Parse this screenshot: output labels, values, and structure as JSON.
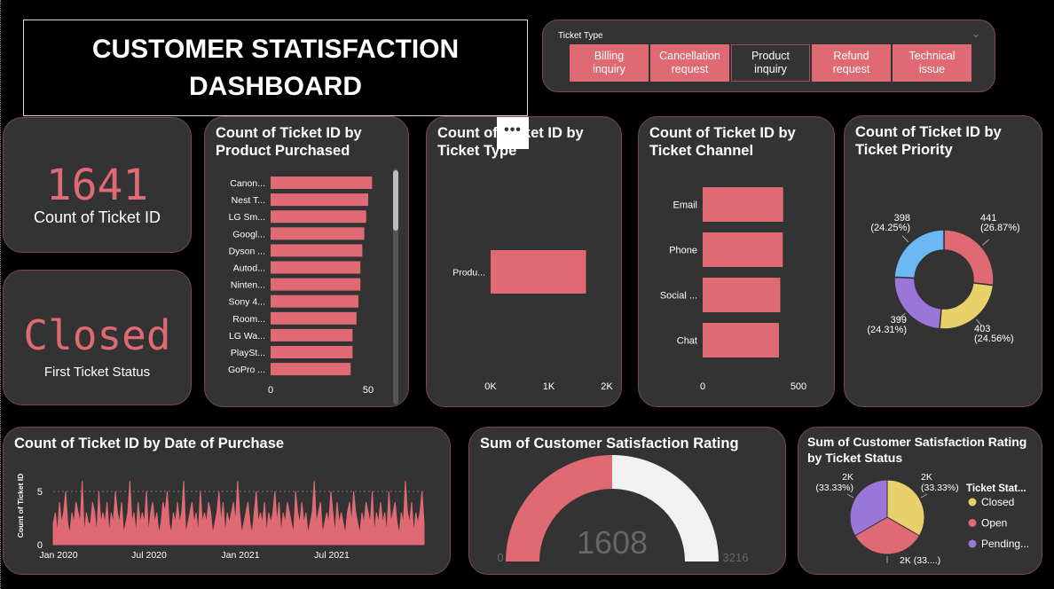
{
  "title": "CUSTOMER STATISFACTION DASHBOARD",
  "colors": {
    "accent": "#df6a73",
    "card": "#333333",
    "blue": "#6ab9f5",
    "yellow": "#e8d06a",
    "purple": "#9a76d8",
    "gauge_rest": "#f1f1f1"
  },
  "slicer": {
    "title": "Ticket Type",
    "selected": "Product inquiry",
    "options": [
      {
        "line1": "Billing",
        "line2": "inquiry"
      },
      {
        "line1": "Cancellation",
        "line2": "request"
      },
      {
        "line1": "Product",
        "line2": "inquiry"
      },
      {
        "line1": "Refund",
        "line2": "request"
      },
      {
        "line1": "Technical",
        "line2": "issue"
      }
    ]
  },
  "kpi_count": {
    "value": "1641",
    "label": "Count of Ticket ID"
  },
  "kpi_status": {
    "value": "Closed",
    "label": "First Ticket Status"
  },
  "more_options_icon": "ellipsis-icon",
  "chart_data": [
    {
      "id": "by_product",
      "type": "bar",
      "orientation": "horizontal",
      "title": "Count of Ticket ID by Product Purchased",
      "categories": [
        "Canon...",
        "Nest T...",
        "LG Sm...",
        "Googl...",
        "Dyson ...",
        "Autod...",
        "Ninten...",
        "Sony 4...",
        "Room...",
        "LG Wa...",
        "PlaySt...",
        "GoPro ..."
      ],
      "values": [
        52,
        50,
        49,
        48,
        47,
        46,
        46,
        45,
        44,
        42,
        42,
        41
      ],
      "xlim": [
        0,
        60
      ],
      "xticks": [
        "0",
        "50"
      ],
      "tick_values": [
        0,
        50
      ]
    },
    {
      "id": "by_type",
      "type": "bar",
      "orientation": "horizontal",
      "title": "Count of Ticket ID by Ticket Type",
      "categories": [
        "Produ..."
      ],
      "values": [
        1641
      ],
      "xlim": [
        0,
        2000
      ],
      "xticks": [
        "0K",
        "1K",
        "2K"
      ],
      "tick_values": [
        0,
        1000,
        2000
      ]
    },
    {
      "id": "by_channel",
      "type": "bar",
      "orientation": "horizontal",
      "title": "Count of Ticket ID by Ticket Channel",
      "categories": [
        "Email",
        "Phone",
        "Social ...",
        "Chat"
      ],
      "values": [
        420,
        418,
        405,
        398
      ],
      "xlim": [
        0,
        500
      ],
      "xticks": [
        "0",
        "500"
      ],
      "tick_values": [
        0,
        500
      ]
    },
    {
      "id": "by_priority",
      "type": "pie",
      "donut": true,
      "title": "Count of Ticket ID by Ticket Priority",
      "values": [
        441,
        403,
        399,
        398
      ],
      "labels": [
        [
          "441",
          "(26.87%)"
        ],
        [
          "403",
          "(24.56%)"
        ],
        [
          "399",
          "(24.31%)"
        ],
        [
          "398",
          "(24.25%)"
        ]
      ],
      "colors": [
        "#df6a73",
        "#e8d06a",
        "#9a76d8",
        "#6ab9f5"
      ]
    },
    {
      "id": "by_date",
      "type": "area",
      "title": "Count of Ticket ID by Date of Purchase",
      "ylabel": "Count of Ticket ID",
      "yticks": [
        "0",
        "5"
      ],
      "ylim": [
        0,
        7
      ],
      "xticks": [
        "Jan 2020",
        "Jul 2020",
        "Jan 2021",
        "Jul 2021"
      ],
      "values": [
        2,
        3,
        1,
        4,
        2,
        3,
        5,
        2,
        1,
        3,
        2,
        4,
        3,
        2,
        6,
        1,
        3,
        2,
        2,
        4,
        3,
        1,
        5,
        2,
        3,
        2,
        4,
        1,
        3,
        2,
        5,
        3,
        2,
        4,
        1,
        2,
        3,
        6,
        2,
        3,
        1,
        4,
        2,
        3,
        2,
        5,
        1,
        3,
        4,
        2,
        3,
        1,
        2,
        4,
        3,
        5,
        2,
        1,
        3,
        2,
        4,
        2,
        3,
        6,
        1,
        2,
        3,
        4,
        2,
        3,
        1,
        5,
        2,
        3,
        2,
        4,
        3,
        1,
        2,
        3,
        5,
        2,
        4,
        1,
        3,
        2,
        3,
        4,
        2,
        6,
        3,
        1,
        2,
        3,
        4,
        2,
        1,
        3,
        5,
        2,
        3,
        2,
        4,
        1,
        3,
        2,
        3,
        5,
        2,
        4,
        1,
        3,
        2,
        4,
        3,
        2,
        1,
        5,
        3,
        2,
        4,
        2,
        3,
        1,
        2,
        3,
        6,
        2,
        3,
        4,
        1,
        2,
        3,
        2,
        5,
        3,
        1,
        4,
        2,
        3,
        2,
        1,
        3,
        4,
        2,
        5,
        3,
        2,
        1,
        3,
        2,
        4,
        3,
        2,
        5,
        1,
        3,
        2,
        4,
        2,
        3,
        1,
        5,
        2,
        3,
        4,
        2,
        1,
        3,
        2,
        6,
        3,
        2,
        4,
        1,
        3,
        2,
        3,
        5,
        2
      ]
    },
    {
      "id": "gauge",
      "type": "gauge",
      "title": "Sum of Customer Satisfaction Rating",
      "value": 1608,
      "min": 0,
      "max": 3216,
      "value_label": "1608",
      "min_label": "0",
      "max_label": "3216"
    },
    {
      "id": "by_status",
      "type": "pie",
      "title": "Sum of Customer Satisfaction Rating by Ticket Status",
      "values": [
        33.33,
        33.33,
        33.33
      ],
      "labels": [
        [
          "2K",
          "(33.33%)"
        ],
        [
          "2K (33....)"
        ],
        [
          "2K",
          "(33.33%)"
        ]
      ],
      "colors": [
        "#e8d06a",
        "#df6a73",
        "#9a76d8"
      ],
      "legend_title": "Ticket Stat...",
      "legend": [
        "Closed",
        "Open",
        "Pending..."
      ]
    }
  ]
}
